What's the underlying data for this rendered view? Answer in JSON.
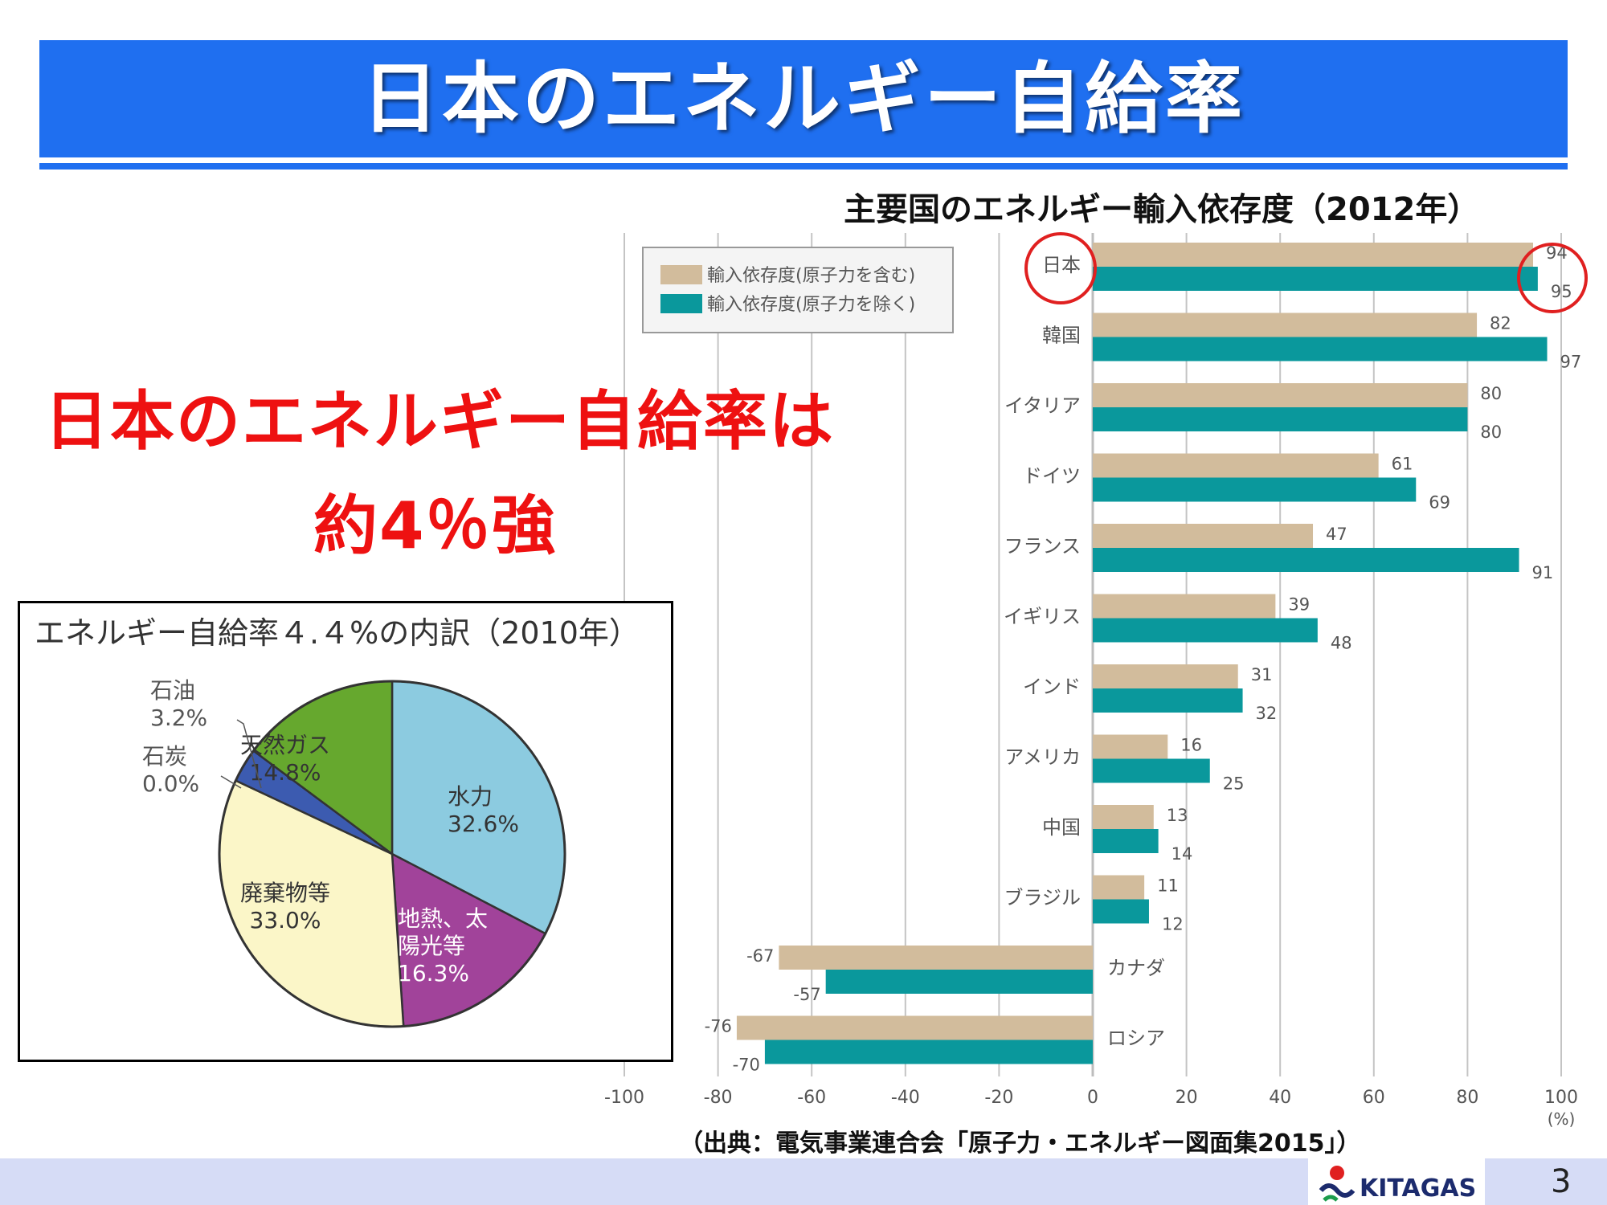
{
  "title": "日本のエネルギー自給率",
  "headline": {
    "line1": "日本のエネルギー自給率は",
    "line2": "約4％強"
  },
  "pie": {
    "title": "エネルギー自給率４.４%の内訳（2010年）",
    "slices": [
      {
        "label": "水力",
        "value_label": "32.6%",
        "value": 32.6,
        "color": "#8ccbe0"
      },
      {
        "label": "地熱、太陽光等",
        "label_lines": [
          "地熱、太",
          "陽光等"
        ],
        "value_label": "16.3%",
        "value": 16.3,
        "color": "#a1439a"
      },
      {
        "label": "廃棄物等",
        "value_label": "33.0%",
        "value": 33.0,
        "color": "#fbf6c8"
      },
      {
        "label": "石炭",
        "value_label": "0.0%",
        "value": 0.0,
        "color": "#333333"
      },
      {
        "label": "石油",
        "value_label": "3.2%",
        "value": 3.2,
        "color": "#3c5bb0"
      },
      {
        "label": "天然ガス",
        "value_label": "14.8%",
        "value": 14.8,
        "color": "#66a82e"
      }
    ]
  },
  "chart_data": {
    "type": "bar",
    "orientation": "horizontal",
    "title": "主要国のエネルギー輸入依存度（2012年）",
    "categories": [
      "日本",
      "韓国",
      "イタリア",
      "ドイツ",
      "フランス",
      "イギリス",
      "インド",
      "アメリカ",
      "中国",
      "ブラジル",
      "カナダ",
      "ロシア"
    ],
    "series": [
      {
        "name": "輸入依存度(原子力を含む)",
        "color": "#d2bc9c",
        "values": [
          94,
          82,
          80,
          61,
          47,
          39,
          31,
          16,
          13,
          11,
          -67,
          -76
        ]
      },
      {
        "name": "輸入依存度(原子力を除く)",
        "color": "#0a989c",
        "values": [
          95,
          97,
          80,
          69,
          91,
          48,
          32,
          25,
          14,
          12,
          -57,
          -70
        ]
      }
    ],
    "xlim": [
      -100,
      100
    ],
    "xticks": [
      -100,
      -80,
      -60,
      -40,
      -20,
      0,
      20,
      40,
      60,
      80,
      100
    ],
    "xunit": "(%)",
    "grid": true,
    "legend": "top-left",
    "highlight_category": "日本"
  },
  "source": "（出典：電気事業連合会「原子力・エネルギー図面集2015」）",
  "footer": {
    "logo": "KITAGAS",
    "page": "3"
  }
}
